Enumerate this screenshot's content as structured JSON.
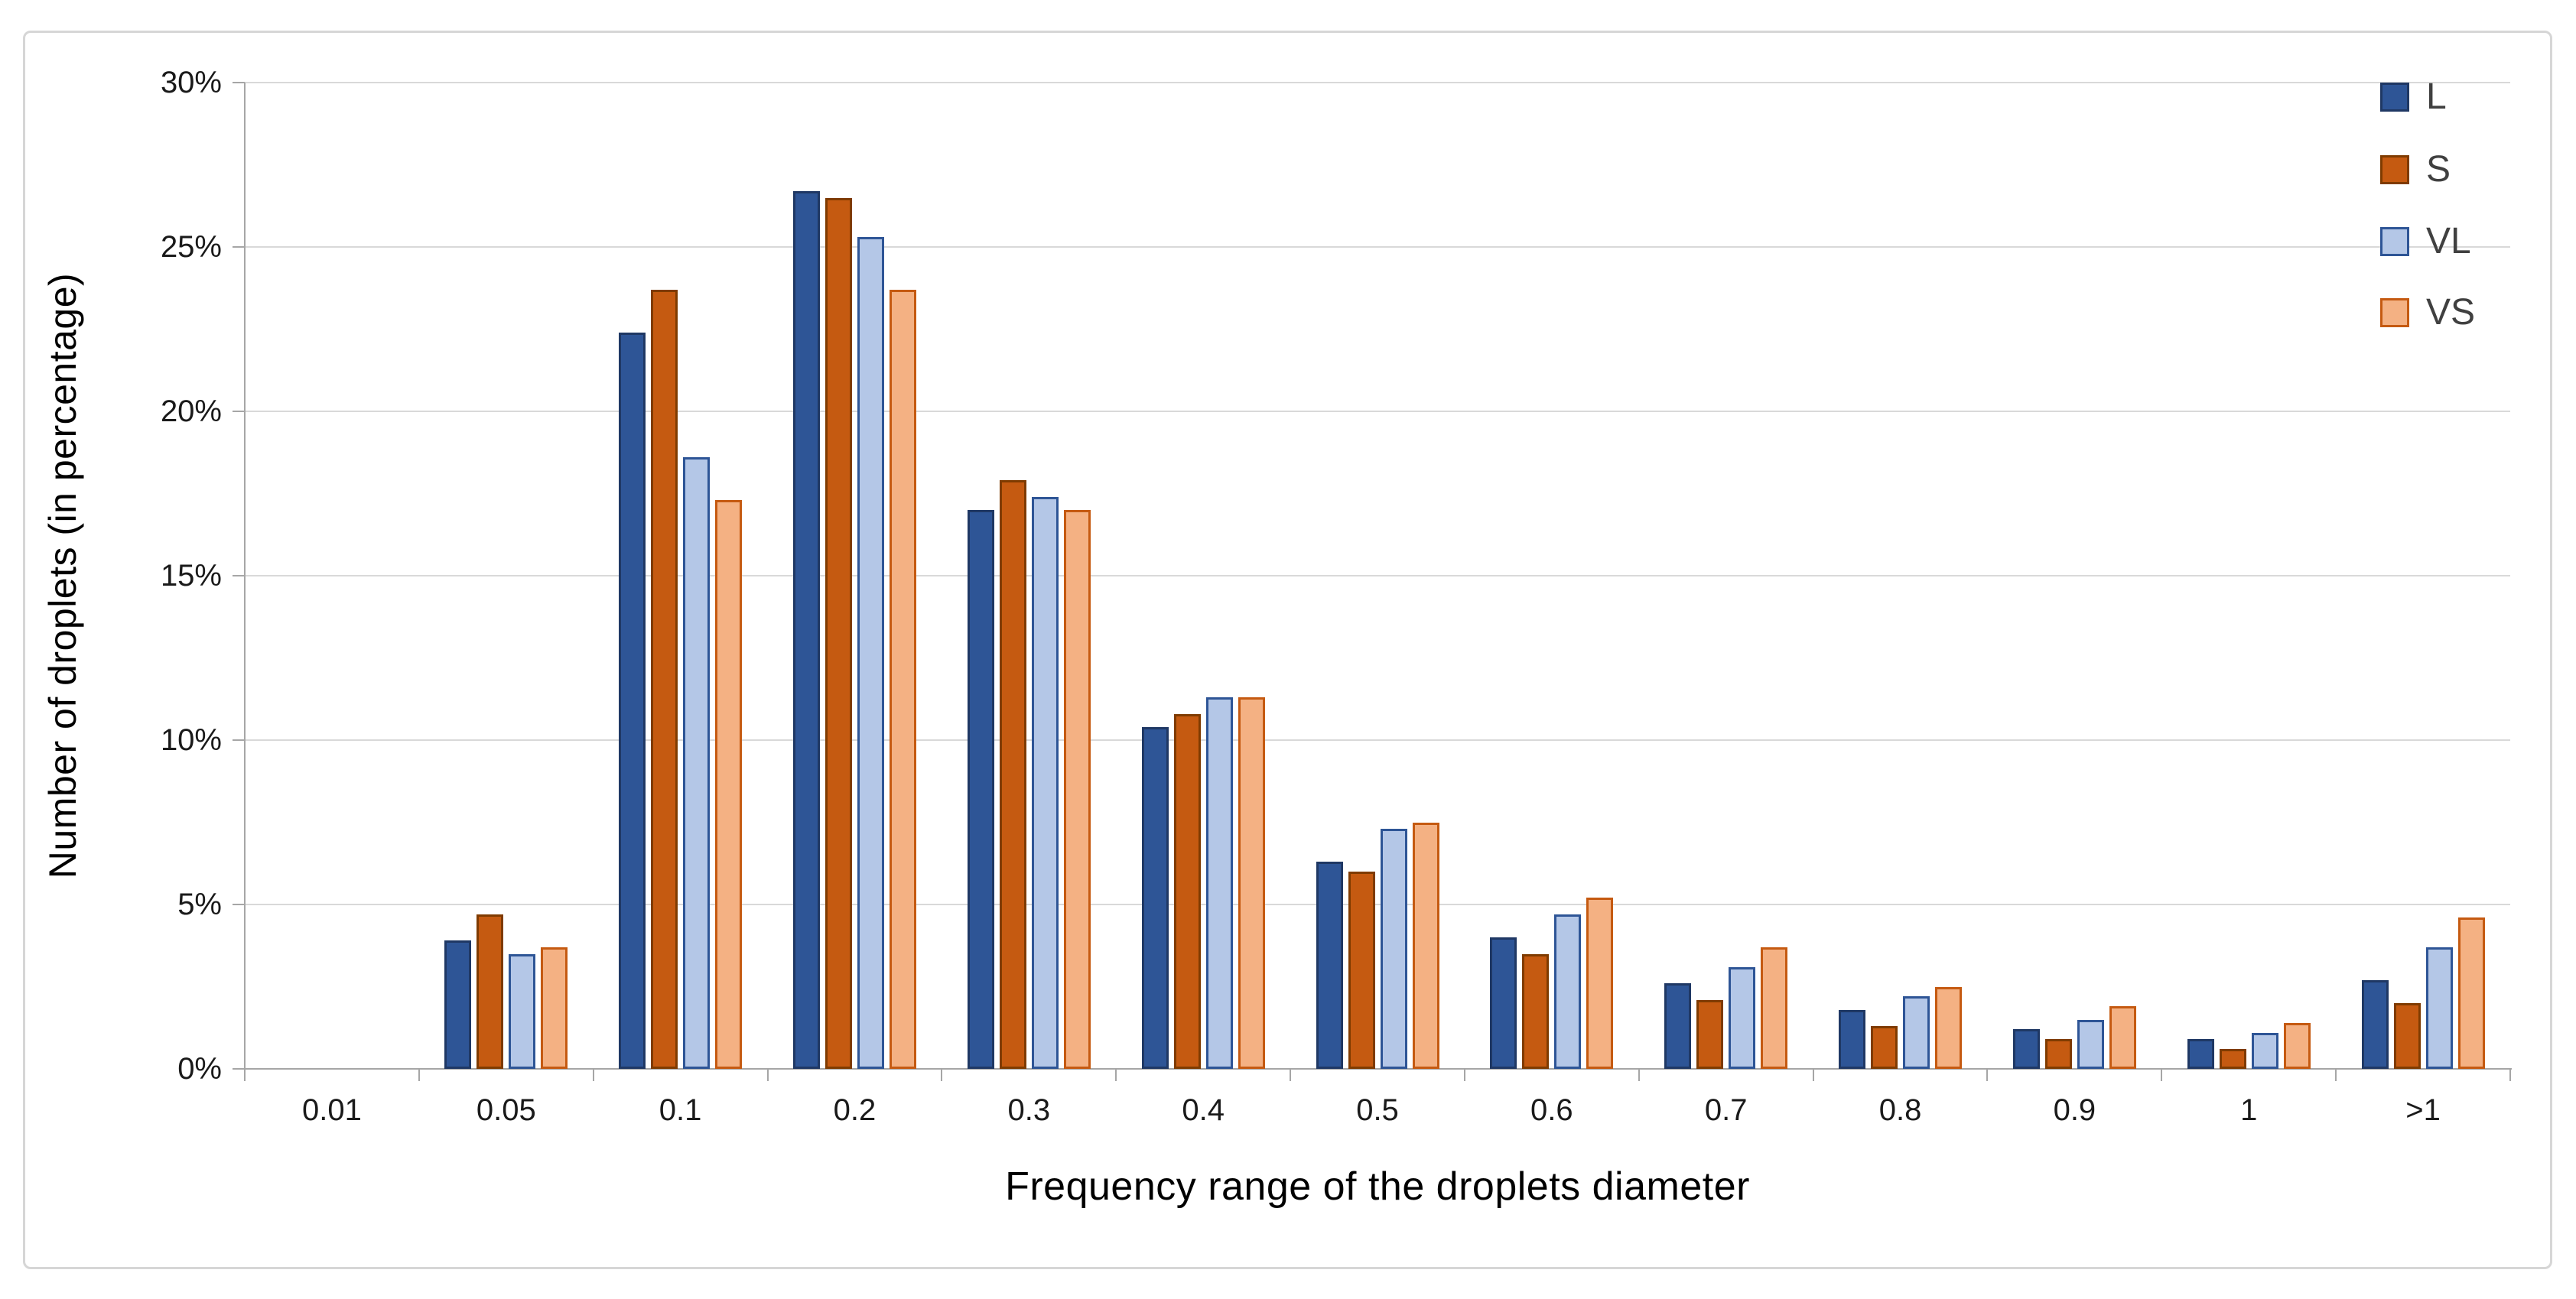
{
  "chart_data": {
    "type": "bar",
    "title": "",
    "xlabel": "Frequency range of the droplets diameter",
    "ylabel": "Number of droplets (in percentage)",
    "categories": [
      "0.01",
      "0.05",
      "0.1",
      "0.2",
      "0.3",
      "0.4",
      "0.5",
      "0.6",
      "0.7",
      "0.8",
      "0.9",
      "1",
      ">1"
    ],
    "series": [
      {
        "name": "L",
        "fill": "#2E5596",
        "border": "#1F3864",
        "values": [
          0,
          3.9,
          22.4,
          26.7,
          17.0,
          10.4,
          6.3,
          4.0,
          2.6,
          1.8,
          1.2,
          0.9,
          2.7
        ]
      },
      {
        "name": "S",
        "fill": "#C55A11",
        "border": "#7F3B00",
        "values": [
          0,
          4.7,
          23.7,
          26.5,
          17.9,
          10.8,
          6.0,
          3.5,
          2.1,
          1.3,
          0.9,
          0.6,
          2.0
        ]
      },
      {
        "name": "VL",
        "fill": "#B4C7E7",
        "border": "#2E5596",
        "values": [
          0,
          3.5,
          18.6,
          25.3,
          17.4,
          11.3,
          7.3,
          4.7,
          3.1,
          2.2,
          1.5,
          1.1,
          3.7
        ]
      },
      {
        "name": "VS",
        "fill": "#F4B183",
        "border": "#C55A11",
        "values": [
          0,
          3.7,
          17.3,
          23.7,
          17.0,
          11.3,
          7.5,
          5.2,
          3.7,
          2.5,
          1.9,
          1.4,
          4.6
        ]
      }
    ],
    "y_ticks": [
      "0%",
      "5%",
      "10%",
      "15%",
      "20%",
      "25%",
      "30%"
    ],
    "ylim": [
      0,
      30
    ],
    "y_tick_step": 5,
    "grid": true,
    "legend_position": "top-right"
  },
  "colors": {
    "gridline": "#D9D9D9",
    "axis": "#A6A6A6",
    "tick_label": "#1A1A1A",
    "card_border": "#D6D6D6",
    "legend_text": "#404040"
  }
}
